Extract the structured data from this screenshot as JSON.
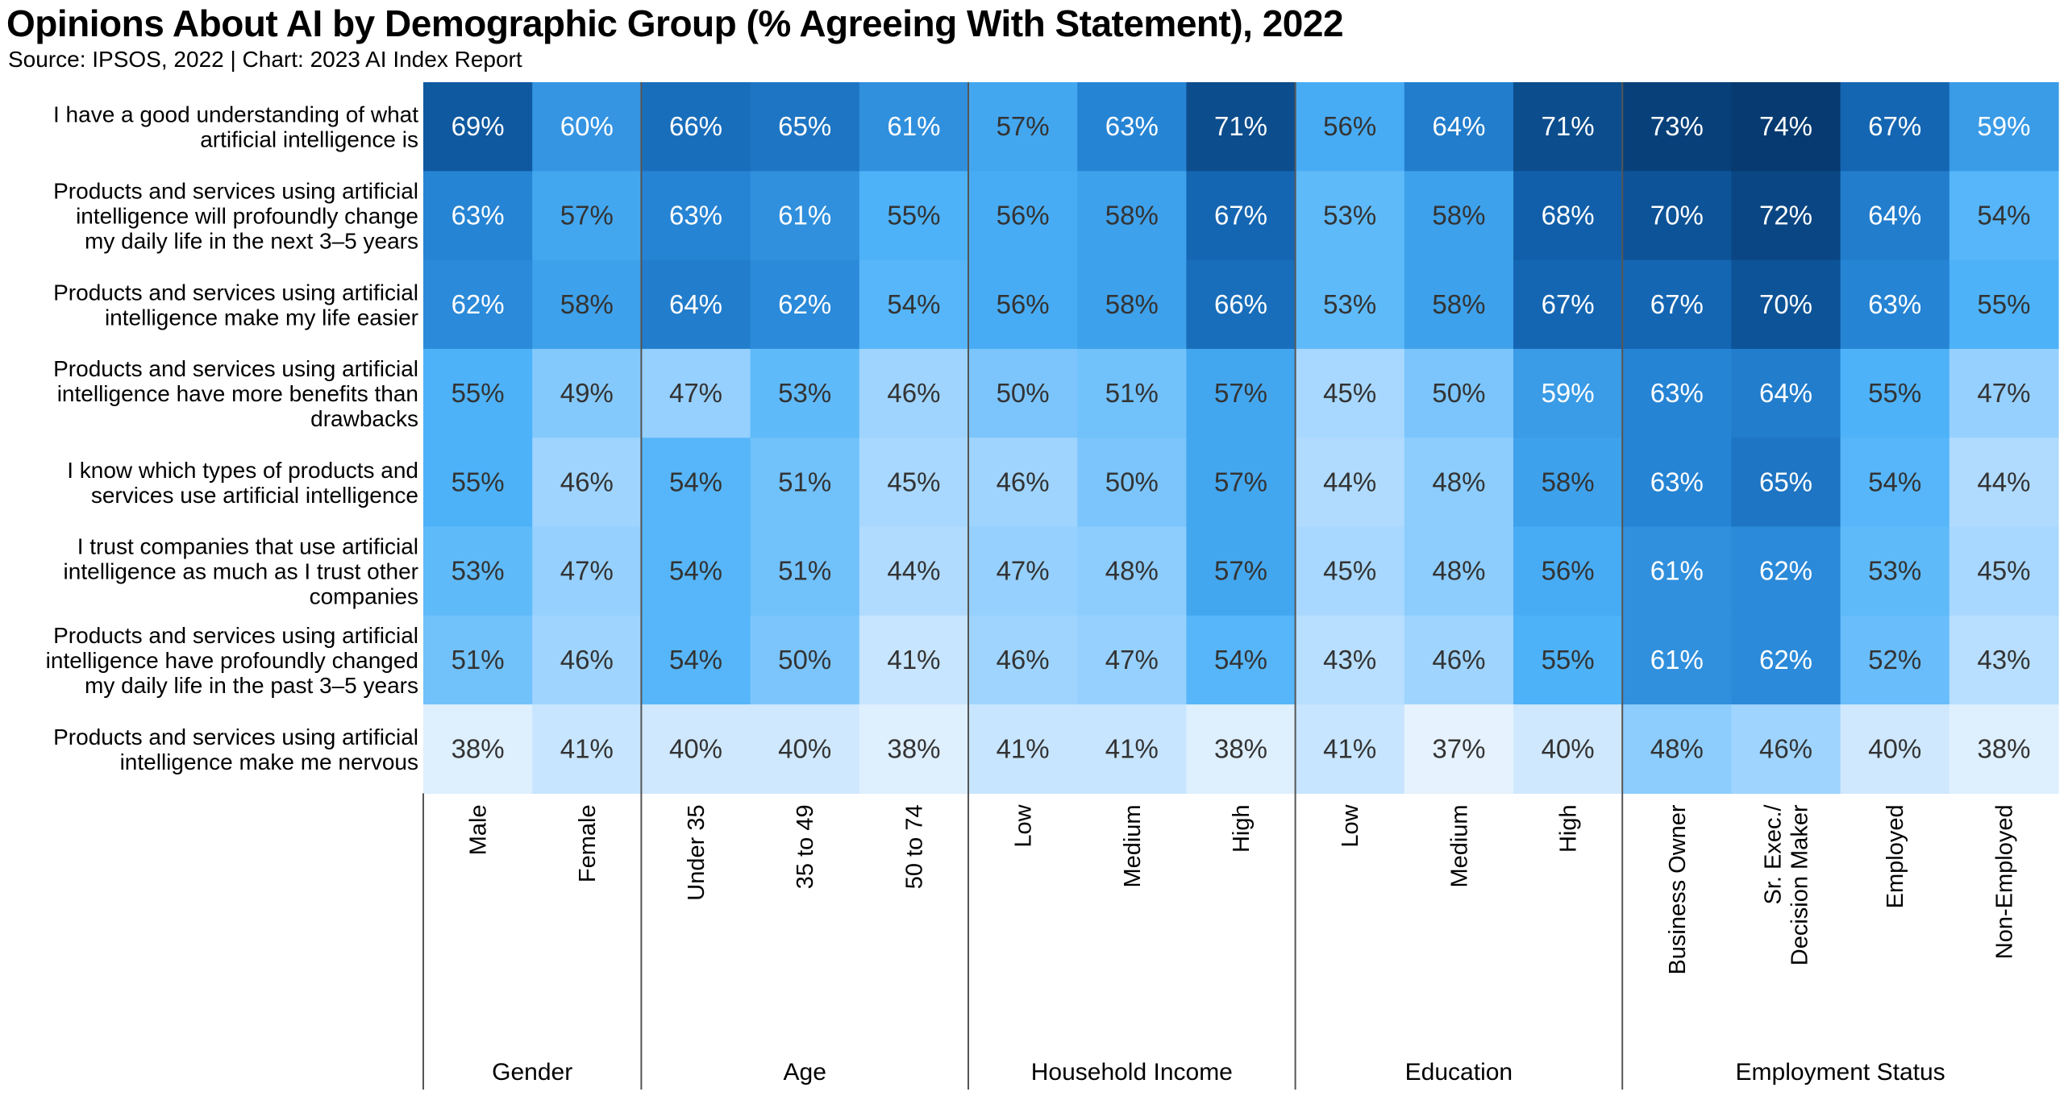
{
  "title": "Opinions About AI by Demographic Group (% Agreeing With Statement), 2022",
  "subtitle": "Source: IPSOS, 2022 | Chart: 2023 AI Index Report",
  "chart_data": {
    "type": "heatmap",
    "title": "Opinions About AI by Demographic Group (% Agreeing With Statement), 2022",
    "subtitle": "Source: IPSOS, 2022 | Chart: 2023 AI Index Report",
    "value_suffix": "%",
    "rows": [
      [
        "I have a good understanding of what",
        "artificial intelligence is"
      ],
      [
        "Products and services using artificial",
        "intelligence will profoundly change",
        "my daily life in the next 3–5 years"
      ],
      [
        "Products and services using artificial",
        "intelligence make my life easier"
      ],
      [
        "Products and services using artificial",
        "intelligence have more benefits than",
        "drawbacks"
      ],
      [
        "I know which types of products and",
        "services use artificial intelligence"
      ],
      [
        "I trust companies that use artificial",
        "intelligence as much as I trust other",
        "companies"
      ],
      [
        "Products and services using artificial",
        "intelligence have profoundly changed",
        "my daily life in the past 3–5 years"
      ],
      [
        "Products and services using artificial",
        "intelligence make me nervous"
      ]
    ],
    "columns": [
      [
        "Male"
      ],
      [
        "Female"
      ],
      [
        "Under 35"
      ],
      [
        "35 to 49"
      ],
      [
        "50 to 74"
      ],
      [
        "Low"
      ],
      [
        "Medium"
      ],
      [
        "High"
      ],
      [
        "Low"
      ],
      [
        "Medium"
      ],
      [
        "High"
      ],
      [
        "Business Owner"
      ],
      [
        "Sr. Exec./",
        "Decision Maker"
      ],
      [
        "Employed"
      ],
      [
        "Non-Employed"
      ]
    ],
    "groups": [
      {
        "name": "Gender",
        "count": 2
      },
      {
        "name": "Age",
        "count": 3
      },
      {
        "name": "Household Income",
        "count": 3
      },
      {
        "name": "Education",
        "count": 3
      },
      {
        "name": "Employment Status",
        "count": 4
      }
    ],
    "values": [
      [
        69,
        60,
        66,
        65,
        61,
        57,
        63,
        71,
        56,
        64,
        71,
        73,
        74,
        67,
        59
      ],
      [
        63,
        57,
        63,
        61,
        55,
        56,
        58,
        67,
        53,
        58,
        68,
        70,
        72,
        64,
        54
      ],
      [
        62,
        58,
        64,
        62,
        54,
        56,
        58,
        66,
        53,
        58,
        67,
        67,
        70,
        63,
        55
      ],
      [
        55,
        49,
        47,
        53,
        46,
        50,
        51,
        57,
        45,
        50,
        59,
        63,
        64,
        55,
        47
      ],
      [
        55,
        46,
        54,
        51,
        45,
        46,
        50,
        57,
        44,
        48,
        58,
        63,
        65,
        54,
        44
      ],
      [
        53,
        47,
        54,
        51,
        44,
        47,
        48,
        57,
        45,
        48,
        56,
        61,
        62,
        53,
        45
      ],
      [
        51,
        46,
        54,
        50,
        41,
        46,
        47,
        54,
        43,
        46,
        55,
        61,
        62,
        52,
        43
      ],
      [
        38,
        41,
        40,
        40,
        38,
        41,
        41,
        38,
        41,
        37,
        40,
        48,
        46,
        40,
        38
      ]
    ]
  }
}
